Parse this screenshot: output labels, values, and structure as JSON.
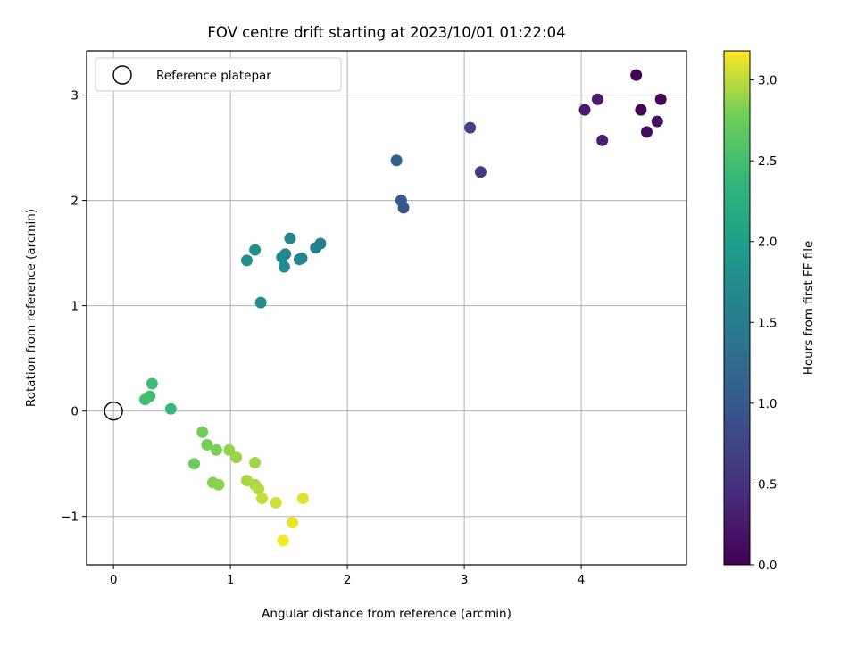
{
  "chart_data": {
    "type": "scatter",
    "title": "FOV centre drift starting at 2023/10/01 01:22:04",
    "xlabel": "Angular distance from reference (arcmin)",
    "ylabel": "Rotation from reference (arcmin)",
    "xlim": [
      -0.23,
      4.9
    ],
    "ylim": [
      -1.46,
      3.42
    ],
    "x_ticks": [
      0,
      1,
      2,
      3,
      4
    ],
    "x_tick_labels": [
      "0",
      "1",
      "2",
      "3",
      "4"
    ],
    "y_ticks": [
      -1,
      0,
      1,
      2,
      3
    ],
    "y_tick_labels": [
      "−1",
      "0",
      "1",
      "2",
      "3"
    ],
    "grid": true,
    "legend": {
      "location": "upper-left",
      "entries": [
        {
          "label": "Reference platepar",
          "marker": "open-circle"
        }
      ]
    },
    "reference_point": {
      "x": 0,
      "y": 0
    },
    "colorbar": {
      "label": "Hours from first FF file",
      "colormap": "viridis",
      "range": [
        0.0,
        3.18
      ],
      "ticks": [
        0.0,
        0.5,
        1.0,
        1.5,
        2.0,
        2.5,
        3.0
      ],
      "tick_labels": [
        "0.0",
        "0.5",
        "1.0",
        "1.5",
        "2.0",
        "2.5",
        "3.0"
      ]
    },
    "points": [
      {
        "x": 4.47,
        "y": 3.19,
        "hours": 0.02
      },
      {
        "x": 4.51,
        "y": 2.86,
        "hours": 0.05
      },
      {
        "x": 4.68,
        "y": 2.96,
        "hours": 0.08
      },
      {
        "x": 4.56,
        "y": 2.65,
        "hours": 0.12
      },
      {
        "x": 4.65,
        "y": 2.75,
        "hours": 0.15
      },
      {
        "x": 4.03,
        "y": 2.86,
        "hours": 0.25
      },
      {
        "x": 4.14,
        "y": 2.96,
        "hours": 0.28
      },
      {
        "x": 4.18,
        "y": 2.57,
        "hours": 0.32
      },
      {
        "x": 3.14,
        "y": 2.27,
        "hours": 0.62
      },
      {
        "x": 3.05,
        "y": 2.69,
        "hours": 0.72
      },
      {
        "x": 2.48,
        "y": 1.93,
        "hours": 0.95
      },
      {
        "x": 2.46,
        "y": 2.0,
        "hours": 1.0
      },
      {
        "x": 2.42,
        "y": 2.38,
        "hours": 1.1
      },
      {
        "x": 1.77,
        "y": 1.59,
        "hours": 1.55
      },
      {
        "x": 1.73,
        "y": 1.55,
        "hours": 1.58
      },
      {
        "x": 1.61,
        "y": 1.45,
        "hours": 1.6
      },
      {
        "x": 1.59,
        "y": 1.44,
        "hours": 1.62
      },
      {
        "x": 1.51,
        "y": 1.64,
        "hours": 1.65
      },
      {
        "x": 1.47,
        "y": 1.49,
        "hours": 1.67
      },
      {
        "x": 1.44,
        "y": 1.46,
        "hours": 1.69
      },
      {
        "x": 1.46,
        "y": 1.37,
        "hours": 1.72
      },
      {
        "x": 1.26,
        "y": 1.03,
        "hours": 1.75
      },
      {
        "x": 1.21,
        "y": 1.53,
        "hours": 1.78
      },
      {
        "x": 1.14,
        "y": 1.43,
        "hours": 1.8
      },
      {
        "x": 0.49,
        "y": 0.02,
        "hours": 2.4
      },
      {
        "x": 0.33,
        "y": 0.26,
        "hours": 2.45
      },
      {
        "x": 0.31,
        "y": 0.14,
        "hours": 2.48
      },
      {
        "x": 0.27,
        "y": 0.11,
        "hours": 2.5
      },
      {
        "x": 0.69,
        "y": -0.5,
        "hours": 2.75
      },
      {
        "x": 0.76,
        "y": -0.2,
        "hours": 2.78
      },
      {
        "x": 0.8,
        "y": -0.32,
        "hours": 2.8
      },
      {
        "x": 0.88,
        "y": -0.37,
        "hours": 2.82
      },
      {
        "x": 0.85,
        "y": -0.68,
        "hours": 2.84
      },
      {
        "x": 0.9,
        "y": -0.7,
        "hours": 2.86
      },
      {
        "x": 0.99,
        "y": -0.37,
        "hours": 2.88
      },
      {
        "x": 1.05,
        "y": -0.44,
        "hours": 2.9
      },
      {
        "x": 1.21,
        "y": -0.49,
        "hours": 2.92
      },
      {
        "x": 1.14,
        "y": -0.66,
        "hours": 2.94
      },
      {
        "x": 1.21,
        "y": -0.7,
        "hours": 2.96
      },
      {
        "x": 1.24,
        "y": -0.74,
        "hours": 2.98
      },
      {
        "x": 1.27,
        "y": -0.83,
        "hours": 3.02
      },
      {
        "x": 1.39,
        "y": -0.87,
        "hours": 3.06
      },
      {
        "x": 1.62,
        "y": -0.83,
        "hours": 3.1
      },
      {
        "x": 1.53,
        "y": -1.06,
        "hours": 3.13
      },
      {
        "x": 1.45,
        "y": -1.23,
        "hours": 3.16
      }
    ]
  }
}
